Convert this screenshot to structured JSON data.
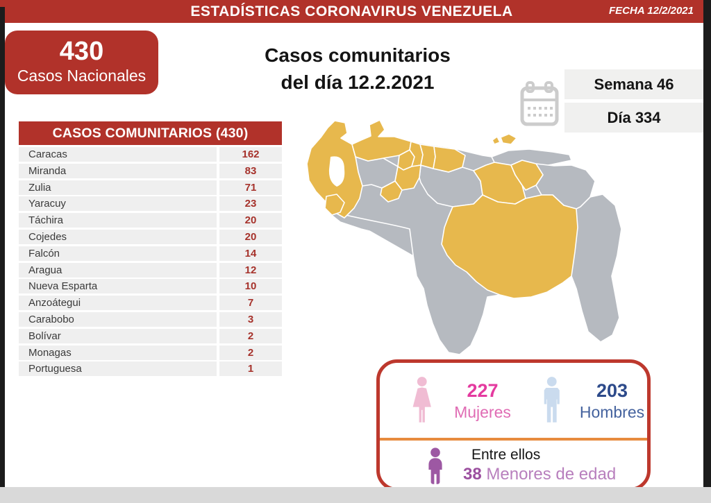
{
  "banner": {
    "title": "ESTADÍSTICAS CORONAVIRUS VENEZUELA",
    "date_label": "FECHA 12/2/2021"
  },
  "national": {
    "count": "430",
    "label": "Casos Nacionales"
  },
  "heading": {
    "line1": "Casos comunitarios",
    "line2": "del día 12.2.2021"
  },
  "period": {
    "week": "Semana 46",
    "day": "Día 334"
  },
  "table": {
    "header": "CASOS COMUNITARIOS (430)",
    "rows": [
      {
        "state": "Caracas",
        "value": "162"
      },
      {
        "state": "Miranda",
        "value": "83"
      },
      {
        "state": "Zulia",
        "value": "71"
      },
      {
        "state": "Yaracuy",
        "value": "23"
      },
      {
        "state": "Táchira",
        "value": "20"
      },
      {
        "state": "Cojedes",
        "value": "20"
      },
      {
        "state": "Falcón",
        "value": "14"
      },
      {
        "state": "Aragua",
        "value": "12"
      },
      {
        "state": "Nueva Esparta",
        "value": "10"
      },
      {
        "state": "Anzoátegui",
        "value": "7"
      },
      {
        "state": "Carabobo",
        "value": "3"
      },
      {
        "state": "Bolívar",
        "value": "2"
      },
      {
        "state": "Monagas",
        "value": "2"
      },
      {
        "state": "Portuguesa",
        "value": "1"
      }
    ]
  },
  "map": {
    "name": "venezuela-states-map"
  },
  "demographics": {
    "women": {
      "count": "227",
      "label": "Mujeres"
    },
    "men": {
      "count": "203",
      "label": "Hombres"
    },
    "minors": {
      "prefix": "Entre ellos",
      "count": "38",
      "suffix": "Menores de edad"
    }
  },
  "colors": {
    "red": "#b1322a",
    "table-val": "#a6322b",
    "row-bg": "#efefef",
    "bar-bg": "#f0f0ef",
    "gold": "#e7b84d",
    "map-gray": "#b6bac0",
    "box-border": "#bd382d",
    "orange": "#e78b3e",
    "pink-num": "#e43a9f",
    "pink-label": "#e06cb4",
    "pink-icon": "#f0bcd3",
    "blue-num": "#2d4a8a",
    "blue-label": "#44629e",
    "blue-icon": "#cadbee",
    "purple-icon": "#9d58a3",
    "purple-num": "#9b4f9f",
    "purple-label": "#b87fbd",
    "frame-black": "#1c1c1c",
    "calendar-gray": "#cccccc"
  }
}
